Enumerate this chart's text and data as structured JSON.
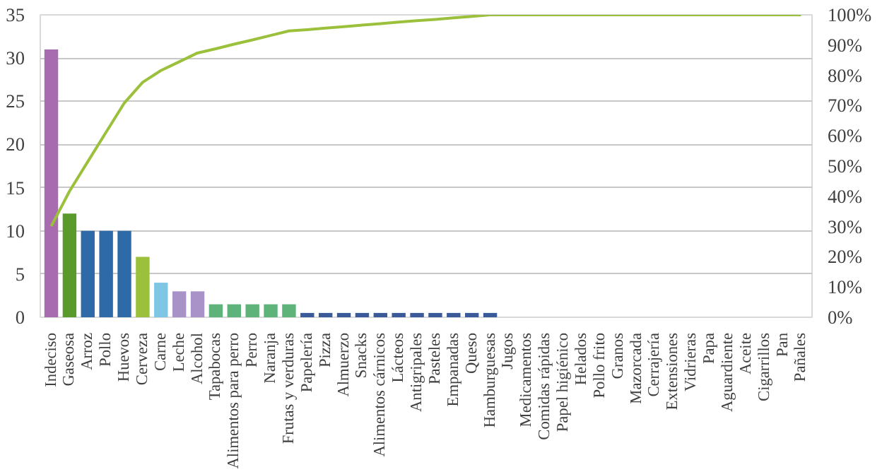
{
  "chart_data": {
    "type": "bar",
    "categories": [
      "Indeciso",
      "Gaseosa",
      "Arroz",
      "Pollo",
      "Huevos",
      "Cerveza",
      "Carne",
      "Leche",
      "Alcohol",
      "Tapabocas",
      "Alimentos para perro",
      "Perro",
      "Naranja",
      "Frutas y verduras",
      "Papelería",
      "Pizza",
      "Almuerzo",
      "Snacks",
      "Alimentos cárnicos",
      "Lácteos",
      "Antigripales",
      "Pasteles",
      "Empanadas",
      "Queso",
      "Hamburguesas",
      "Jugos",
      "Medicamentos",
      "Comidas rápidas",
      "Papel higiénico",
      "Helados",
      "Pollo frito",
      "Granos",
      "Mazorcada",
      "Cerrajería",
      "Extensiones",
      "Vidrieras",
      "Papa",
      "Aguardiente",
      "Aceite",
      "Cigarrillos",
      "Pan",
      "Pañales"
    ],
    "series": [
      {
        "values": [
          31,
          12,
          10,
          10,
          10,
          7,
          4,
          3,
          3,
          1.5,
          1.5,
          1.5,
          1.5,
          1.5,
          0.5,
          0.5,
          0.5,
          0.5,
          0.5,
          0.5,
          0.5,
          0.5,
          0.5,
          0.5,
          0.5,
          0,
          0,
          0,
          0,
          0,
          0,
          0,
          0,
          0,
          0,
          0,
          0,
          0,
          0,
          0,
          0,
          0
        ],
        "colors": [
          "#a86bb0",
          "#5a9a2a",
          "#2e6aa8",
          "#2e6aa8",
          "#2e6aa8",
          "#9bc13c",
          "#7fc6e4",
          "#a992c8",
          "#a992c8",
          "#5db37a",
          "#5db37a",
          "#5db37a",
          "#5db37a",
          "#5db37a",
          "#3a5a9a",
          "#3a5a9a",
          "#3a5a9a",
          "#3a5a9a",
          "#3a5a9a",
          "#3a5a9a",
          "#3a5a9a",
          "#3a5a9a",
          "#3a5a9a",
          "#3a5a9a",
          "#3a5a9a",
          "#3a5a9a",
          "#3a5a9a",
          "#3a5a9a",
          "#3a5a9a",
          "#3a5a9a",
          "#3a5a9a",
          "#3a5a9a",
          "#3a5a9a",
          "#3a5a9a",
          "#3a5a9a",
          "#3a5a9a",
          "#3a5a9a",
          "#3a5a9a",
          "#3a5a9a",
          "#3a5a9a",
          "#3a5a9a",
          "#3a5a9a"
        ]
      },
      {
        "type": "line",
        "axis": "y2",
        "color": "#9bc13c",
        "values": [
          30.1,
          41.7,
          51.5,
          61.2,
          70.9,
          77.7,
          81.6,
          84.5,
          87.4,
          88.8,
          90.3,
          91.7,
          93.2,
          94.7,
          95.1,
          95.6,
          96.1,
          96.6,
          97.1,
          97.6,
          98.1,
          98.5,
          99.0,
          99.5,
          100,
          100,
          100,
          100,
          100,
          100,
          100,
          100,
          100,
          100,
          100,
          100,
          100,
          100,
          100,
          100,
          100,
          100
        ]
      }
    ],
    "ylim": [
      0,
      35
    ],
    "yticks": [
      0,
      5,
      10,
      15,
      20,
      25,
      30,
      35
    ],
    "y2lim": [
      0,
      100
    ],
    "y2ticks": [
      {
        "value": 0,
        "label": "0%"
      },
      {
        "value": 10,
        "label": "10%"
      },
      {
        "value": 20,
        "label": "20%"
      },
      {
        "value": 30,
        "label": "30%"
      },
      {
        "value": 40,
        "label": "40%"
      },
      {
        "value": 50,
        "label": "50%"
      },
      {
        "value": 60,
        "label": "60%"
      },
      {
        "value": 70,
        "label": "70%"
      },
      {
        "value": 80,
        "label": "80%"
      },
      {
        "value": 90,
        "label": "90%"
      },
      {
        "value": 100,
        "label": "100%"
      }
    ],
    "grid": "y",
    "marker": "none",
    "line_style": "solid"
  }
}
